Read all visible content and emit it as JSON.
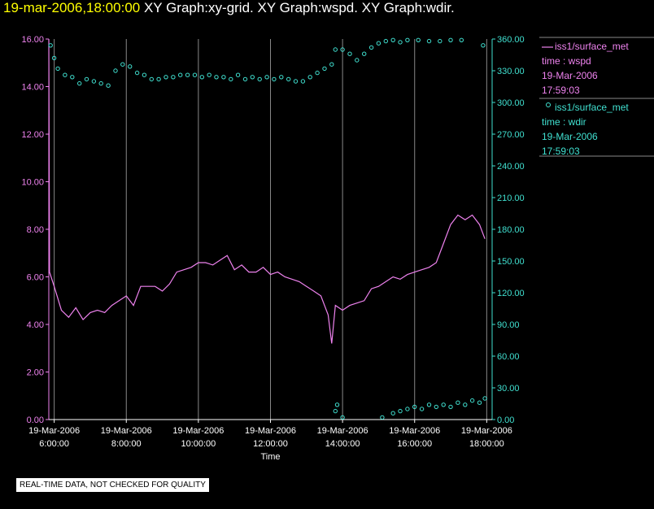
{
  "header": {
    "timestamp": "19-mar-2006,18:00:00",
    "graphs": "XY Graph:xy-grid.  XY Graph:wspd.  XY Graph:wdir."
  },
  "colors": {
    "wspd": "#ee82ee",
    "wdir": "#40e0d0",
    "timestamp": "#ffff00",
    "grid": "#888888"
  },
  "legend": [
    {
      "symbol": "line",
      "name": "iss1/surface_met",
      "field": "time : wspd",
      "date": "19-Mar-2006",
      "time": "17:59:03"
    },
    {
      "symbol": "circle",
      "name": "iss1/surface_met",
      "field": "time : wdir",
      "date": "19-Mar-2006",
      "time": "17:59:03"
    }
  ],
  "disclaimer": "REAL-TIME DATA, NOT CHECKED FOR QUALITY",
  "chart_data": {
    "type": "line",
    "xlabel": "Time",
    "x_ticks": [
      {
        "date": "19-Mar-2006",
        "time": "6:00:00",
        "hour": 6
      },
      {
        "date": "19-Mar-2006",
        "time": "8:00:00",
        "hour": 8
      },
      {
        "date": "19-Mar-2006",
        "time": "10:00:00",
        "hour": 10
      },
      {
        "date": "19-Mar-2006",
        "time": "12:00:00",
        "hour": 12
      },
      {
        "date": "19-Mar-2006",
        "time": "14:00:00",
        "hour": 14
      },
      {
        "date": "19-Mar-2006",
        "time": "16:00:00",
        "hour": 16
      },
      {
        "date": "19-Mar-2006",
        "time": "18:00:00",
        "hour": 18
      }
    ],
    "xlim_hours": [
      5.85,
      18.15
    ],
    "y_left": {
      "ticks": [
        "0.00",
        "2.00",
        "4.00",
        "6.00",
        "8.00",
        "10.00",
        "12.00",
        "14.00",
        "16.00"
      ],
      "lim": [
        0,
        16
      ]
    },
    "y_right": {
      "ticks": [
        "0.00",
        "30.00",
        "60.00",
        "90.00",
        "120.00",
        "150.00",
        "180.00",
        "210.00",
        "240.00",
        "270.00",
        "300.00",
        "330.00",
        "360.00"
      ],
      "lim": [
        0,
        360
      ]
    },
    "grid": "vertical at x ticks",
    "series": [
      {
        "name": "wspd",
        "axis": "left",
        "style": "line",
        "points": [
          [
            5.85,
            16.0
          ],
          [
            5.87,
            6.2
          ],
          [
            6.0,
            5.6
          ],
          [
            6.2,
            4.6
          ],
          [
            6.4,
            4.3
          ],
          [
            6.6,
            4.7
          ],
          [
            6.8,
            4.2
          ],
          [
            7.0,
            4.5
          ],
          [
            7.2,
            4.6
          ],
          [
            7.4,
            4.5
          ],
          [
            7.6,
            4.8
          ],
          [
            7.8,
            5.0
          ],
          [
            8.0,
            5.2
          ],
          [
            8.2,
            4.8
          ],
          [
            8.4,
            5.6
          ],
          [
            8.6,
            5.6
          ],
          [
            8.8,
            5.6
          ],
          [
            9.0,
            5.4
          ],
          [
            9.2,
            5.7
          ],
          [
            9.4,
            6.2
          ],
          [
            9.6,
            6.3
          ],
          [
            9.8,
            6.4
          ],
          [
            10.0,
            6.6
          ],
          [
            10.2,
            6.6
          ],
          [
            10.4,
            6.5
          ],
          [
            10.6,
            6.7
          ],
          [
            10.8,
            6.9
          ],
          [
            11.0,
            6.3
          ],
          [
            11.2,
            6.5
          ],
          [
            11.4,
            6.2
          ],
          [
            11.6,
            6.2
          ],
          [
            11.8,
            6.4
          ],
          [
            12.0,
            6.1
          ],
          [
            12.2,
            6.2
          ],
          [
            12.4,
            6.0
          ],
          [
            12.6,
            5.9
          ],
          [
            12.8,
            5.8
          ],
          [
            13.0,
            5.6
          ],
          [
            13.2,
            5.4
          ],
          [
            13.4,
            5.2
          ],
          [
            13.6,
            4.4
          ],
          [
            13.7,
            3.2
          ],
          [
            13.8,
            4.8
          ],
          [
            14.0,
            4.6
          ],
          [
            14.2,
            4.8
          ],
          [
            14.4,
            4.9
          ],
          [
            14.6,
            5.0
          ],
          [
            14.8,
            5.5
          ],
          [
            15.0,
            5.6
          ],
          [
            15.2,
            5.8
          ],
          [
            15.4,
            6.0
          ],
          [
            15.6,
            5.9
          ],
          [
            15.8,
            6.1
          ],
          [
            16.0,
            6.2
          ],
          [
            16.2,
            6.3
          ],
          [
            16.4,
            6.4
          ],
          [
            16.6,
            6.6
          ],
          [
            16.8,
            7.4
          ],
          [
            17.0,
            8.2
          ],
          [
            17.2,
            8.6
          ],
          [
            17.4,
            8.4
          ],
          [
            17.6,
            8.6
          ],
          [
            17.8,
            8.2
          ],
          [
            17.95,
            7.6
          ]
        ]
      },
      {
        "name": "wdir",
        "axis": "right",
        "style": "circles",
        "points": [
          [
            5.9,
            354
          ],
          [
            6.0,
            342
          ],
          [
            6.1,
            332
          ],
          [
            6.3,
            326
          ],
          [
            6.5,
            324
          ],
          [
            6.7,
            318
          ],
          [
            6.9,
            322
          ],
          [
            7.1,
            320
          ],
          [
            7.3,
            318
          ],
          [
            7.5,
            316
          ],
          [
            7.7,
            330
          ],
          [
            7.9,
            336
          ],
          [
            8.1,
            334
          ],
          [
            8.3,
            328
          ],
          [
            8.5,
            326
          ],
          [
            8.7,
            322
          ],
          [
            8.9,
            322
          ],
          [
            9.1,
            324
          ],
          [
            9.3,
            324
          ],
          [
            9.5,
            326
          ],
          [
            9.7,
            326
          ],
          [
            9.9,
            326
          ],
          [
            10.1,
            324
          ],
          [
            10.3,
            326
          ],
          [
            10.5,
            324
          ],
          [
            10.7,
            324
          ],
          [
            10.9,
            322
          ],
          [
            11.1,
            326
          ],
          [
            11.3,
            322
          ],
          [
            11.5,
            324
          ],
          [
            11.7,
            322
          ],
          [
            11.9,
            324
          ],
          [
            12.1,
            322
          ],
          [
            12.3,
            324
          ],
          [
            12.5,
            322
          ],
          [
            12.7,
            320
          ],
          [
            12.9,
            320
          ],
          [
            13.1,
            324
          ],
          [
            13.3,
            328
          ],
          [
            13.5,
            332
          ],
          [
            13.7,
            336
          ],
          [
            13.8,
            350
          ],
          [
            14.0,
            350
          ],
          [
            14.2,
            346
          ],
          [
            14.4,
            340
          ],
          [
            14.6,
            346
          ],
          [
            14.8,
            352
          ],
          [
            15.0,
            356
          ],
          [
            15.2,
            358
          ],
          [
            15.4,
            359
          ],
          [
            15.6,
            357
          ],
          [
            15.8,
            359
          ],
          [
            16.1,
            359
          ],
          [
            16.4,
            358
          ],
          [
            16.7,
            358
          ],
          [
            17.0,
            359
          ],
          [
            17.3,
            359
          ],
          [
            17.9,
            354
          ],
          [
            13.8,
            8
          ],
          [
            13.85,
            14
          ],
          [
            14.0,
            2
          ],
          [
            15.1,
            2
          ],
          [
            15.4,
            6
          ],
          [
            15.6,
            8
          ],
          [
            15.8,
            10
          ],
          [
            16.0,
            12
          ],
          [
            16.2,
            10
          ],
          [
            16.4,
            14
          ],
          [
            16.6,
            12
          ],
          [
            16.8,
            14
          ],
          [
            17.0,
            12
          ],
          [
            17.2,
            16
          ],
          [
            17.4,
            14
          ],
          [
            17.6,
            18
          ],
          [
            17.8,
            16
          ],
          [
            17.95,
            20
          ]
        ]
      }
    ]
  }
}
